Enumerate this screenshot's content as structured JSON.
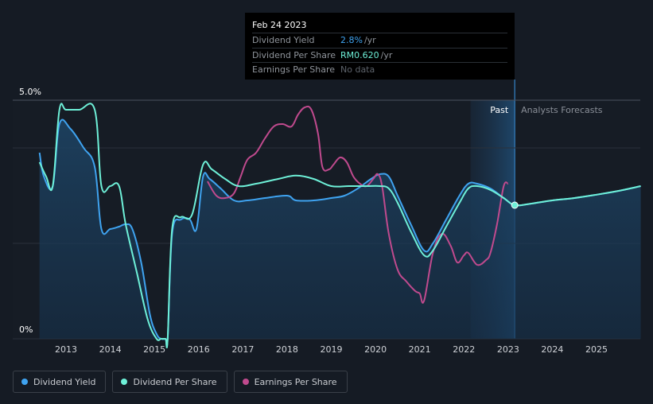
{
  "tooltip": {
    "date": "Feb 24 2023",
    "rows": [
      {
        "label": "Dividend Yield",
        "value": "2.8%",
        "unit": "/yr"
      },
      {
        "label": "Dividend Per Share",
        "value": "RM0.620",
        "unit": "/yr"
      },
      {
        "label": "Earnings Per Share",
        "value": "No data",
        "unit": ""
      }
    ]
  },
  "legend": [
    {
      "label": "Dividend Yield",
      "color": "#3fa3f0"
    },
    {
      "label": "Dividend Per Share",
      "color": "#6ef0d8"
    },
    {
      "label": "Earnings Per Share",
      "color": "#c04a8e"
    }
  ],
  "colors": {
    "dividend_yield": "#3fa3f0",
    "dividend_per_share": "#6ef0d8",
    "earnings_per_share": "#c04a8e",
    "background": "#151b24"
  },
  "chart_data": {
    "type": "line",
    "title": "",
    "xlabel": "",
    "ylabel": "",
    "ylim": [
      0,
      5
    ],
    "y_ticks": [
      "0%",
      "5.0%"
    ],
    "x_ticks": [
      "2013",
      "2014",
      "2015",
      "2016",
      "2017",
      "2018",
      "2019",
      "2020",
      "2021",
      "2022",
      "2023",
      "2024",
      "2025"
    ],
    "regions": {
      "past_label": "Past",
      "forecast_label": "Analysts Forecasts",
      "past_end": 2023.15
    },
    "series": [
      {
        "name": "Dividend Yield",
        "x": [
          2012.4,
          2012.5,
          2012.7,
          2012.85,
          2013.1,
          2013.4,
          2013.65,
          2013.8,
          2014.0,
          2014.2,
          2014.35,
          2014.5,
          2014.7,
          2014.9,
          2015.05,
          2015.15,
          2015.25,
          2015.3,
          2015.4,
          2015.6,
          2015.8,
          2015.95,
          2016.1,
          2016.25,
          2016.5,
          2016.8,
          2017.1,
          2017.5,
          2018.0,
          2018.2,
          2018.6,
          2019.0,
          2019.3,
          2019.6,
          2019.9,
          2020.1,
          2020.3,
          2020.5,
          2020.8,
          2021.1,
          2021.3,
          2021.6,
          2021.9,
          2022.1,
          2022.3,
          2022.6,
          2022.9,
          2023.15,
          2023.5,
          2024.0,
          2024.5,
          2025.0,
          2025.5,
          2026.0
        ],
        "values": [
          3.9,
          3.4,
          3.2,
          4.5,
          4.4,
          4.0,
          3.6,
          2.3,
          2.3,
          2.35,
          2.4,
          2.3,
          1.6,
          0.5,
          0.1,
          0.0,
          0.0,
          0.0,
          2.2,
          2.5,
          2.5,
          2.3,
          3.4,
          3.35,
          3.15,
          2.9,
          2.9,
          2.95,
          3.0,
          2.9,
          2.9,
          2.95,
          3.0,
          3.15,
          3.35,
          3.45,
          3.4,
          3.0,
          2.4,
          1.85,
          2.0,
          2.5,
          3.0,
          3.25,
          3.25,
          3.15,
          2.95,
          2.8,
          2.83,
          2.9,
          2.95,
          3.02,
          3.1,
          3.2
        ]
      },
      {
        "name": "Dividend Per Share",
        "x": [
          2012.4,
          2012.55,
          2012.7,
          2012.85,
          2013.0,
          2013.3,
          2013.65,
          2013.8,
          2014.0,
          2014.2,
          2014.35,
          2014.6,
          2014.85,
          2015.05,
          2015.15,
          2015.25,
          2015.3,
          2015.4,
          2015.6,
          2015.85,
          2016.1,
          2016.3,
          2016.6,
          2016.9,
          2017.3,
          2017.8,
          2018.2,
          2018.6,
          2019.0,
          2019.4,
          2019.8,
          2020.1,
          2020.3,
          2020.5,
          2020.8,
          2021.1,
          2021.3,
          2021.6,
          2021.9,
          2022.1,
          2022.3,
          2022.6,
          2022.9,
          2023.15,
          2023.5,
          2024.0,
          2024.5,
          2025.0,
          2025.5,
          2026.0
        ],
        "values": [
          3.7,
          3.4,
          3.2,
          4.8,
          4.8,
          4.8,
          4.8,
          3.2,
          3.2,
          3.2,
          2.4,
          1.4,
          0.4,
          0.0,
          0.0,
          0.0,
          0.0,
          2.3,
          2.55,
          2.6,
          3.65,
          3.55,
          3.35,
          3.2,
          3.25,
          3.35,
          3.42,
          3.35,
          3.2,
          3.2,
          3.2,
          3.2,
          3.15,
          2.85,
          2.25,
          1.75,
          1.85,
          2.35,
          2.85,
          3.15,
          3.2,
          3.12,
          2.95,
          2.8,
          2.83,
          2.9,
          2.95,
          3.02,
          3.1,
          3.2
        ]
      },
      {
        "name": "Earnings Per Share",
        "x": [
          2016.2,
          2016.4,
          2016.6,
          2016.8,
          2016.95,
          2017.1,
          2017.3,
          2017.5,
          2017.7,
          2017.9,
          2018.1,
          2018.25,
          2018.4,
          2018.55,
          2018.7,
          2018.8,
          2018.95,
          2019.05,
          2019.2,
          2019.35,
          2019.5,
          2019.65,
          2019.8,
          2019.95,
          2020.05,
          2020.15,
          2020.3,
          2020.5,
          2020.7,
          2020.9,
          2021.0,
          2021.1,
          2021.3,
          2021.5,
          2021.7,
          2021.85,
          2022.0,
          2022.1,
          2022.3,
          2022.5,
          2022.6,
          2022.75,
          2022.9,
          2023.0
        ],
        "values": [
          3.3,
          3.0,
          2.95,
          3.05,
          3.4,
          3.75,
          3.9,
          4.2,
          4.45,
          4.5,
          4.45,
          4.7,
          4.85,
          4.8,
          4.3,
          3.6,
          3.55,
          3.65,
          3.8,
          3.7,
          3.4,
          3.25,
          3.2,
          3.35,
          3.45,
          3.2,
          2.2,
          1.45,
          1.2,
          1.0,
          0.95,
          0.8,
          1.8,
          2.2,
          1.95,
          1.6,
          1.75,
          1.8,
          1.55,
          1.65,
          1.8,
          2.4,
          3.2,
          3.25
        ]
      }
    ]
  }
}
